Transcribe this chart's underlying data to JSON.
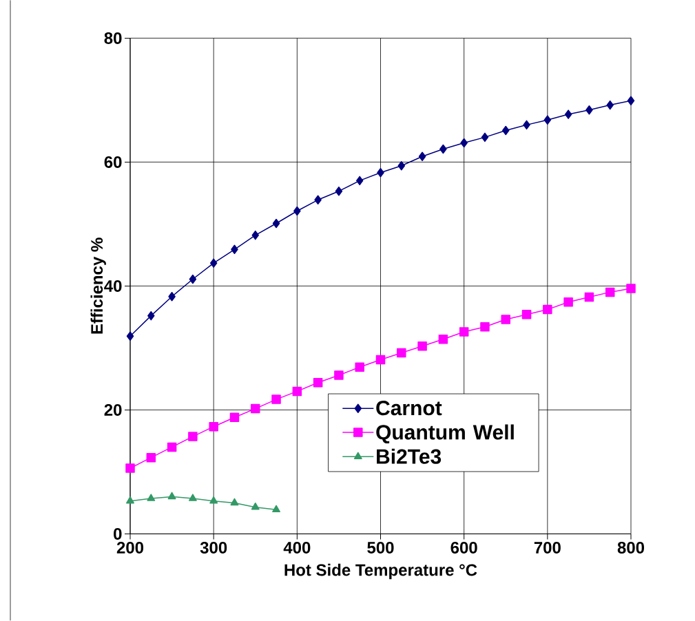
{
  "chart_data": {
    "type": "line",
    "xlabel": "Hot Side Temperature °C",
    "ylabel": "Efficiency %",
    "xlim": [
      200,
      800
    ],
    "ylim": [
      0,
      80
    ],
    "xticks": [
      200,
      300,
      400,
      500,
      600,
      700,
      800
    ],
    "yticks": [
      0,
      20,
      40,
      60,
      80
    ],
    "grid": true,
    "legend": "bottom right",
    "line_style": "solid",
    "series": [
      {
        "name": "Carnot",
        "color": "#000080",
        "marker": "diamond",
        "x": [
          200,
          225,
          250,
          275,
          300,
          325,
          350,
          375,
          400,
          425,
          450,
          475,
          500,
          525,
          550,
          575,
          600,
          625,
          650,
          675,
          700,
          725,
          750,
          775,
          800
        ],
        "values": [
          31.9,
          35.2,
          38.3,
          41.1,
          43.7,
          45.9,
          48.2,
          50.1,
          52.1,
          53.9,
          55.3,
          57.0,
          58.3,
          59.4,
          60.9,
          62.1,
          63.1,
          64.0,
          65.1,
          66.0,
          66.8,
          67.7,
          68.4,
          69.2,
          69.9
        ]
      },
      {
        "name": "Quantum Well",
        "color": "#ff00ff",
        "marker": "square",
        "x": [
          200,
          225,
          250,
          275,
          300,
          325,
          350,
          375,
          400,
          425,
          450,
          475,
          500,
          525,
          550,
          575,
          600,
          625,
          650,
          675,
          700,
          725,
          750,
          775,
          800
        ],
        "values": [
          10.6,
          12.3,
          14.0,
          15.7,
          17.3,
          18.8,
          20.2,
          21.7,
          23.0,
          24.4,
          25.6,
          26.9,
          28.1,
          29.2,
          30.3,
          31.4,
          32.6,
          33.4,
          34.6,
          35.4,
          36.2,
          37.4,
          38.2,
          39.0,
          39.6
        ]
      },
      {
        "name": "Bi2Te3",
        "color": "#339966",
        "marker": "triangle",
        "x": [
          200,
          225,
          250,
          275,
          300,
          325,
          350,
          375
        ],
        "values": [
          5.3,
          5.7,
          6.0,
          5.7,
          5.3,
          5.0,
          4.3,
          3.9
        ]
      }
    ]
  }
}
